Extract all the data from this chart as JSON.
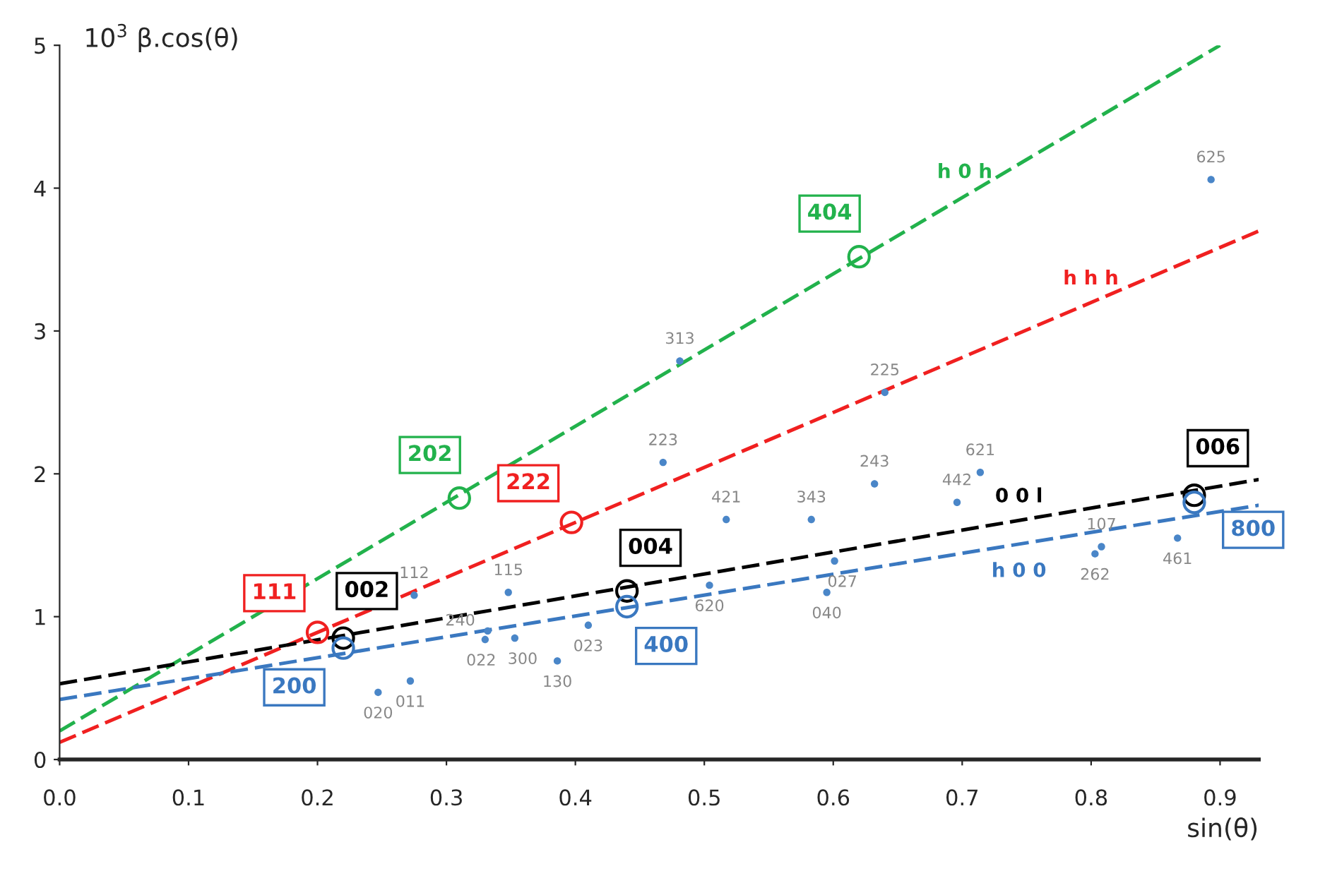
{
  "chart_data": {
    "type": "scatter",
    "xlabel": "sin(θ)",
    "ylabel": "10$^{3}$ β.cos(θ)",
    "xlim": [
      0,
      0.93
    ],
    "ylim": [
      0,
      5
    ],
    "xticks": [
      {
        "value": 0,
        "label": "0.0"
      },
      {
        "value": 0.1,
        "label": "0.1"
      },
      {
        "value": 0.2,
        "label": "0.2"
      },
      {
        "value": 0.3,
        "label": "0.3"
      },
      {
        "value": 0.4,
        "label": "0.4"
      },
      {
        "value": 0.5,
        "label": "0.5"
      },
      {
        "value": 0.6,
        "label": "0.6"
      },
      {
        "value": 0.7,
        "label": "0.7"
      },
      {
        "value": 0.8,
        "label": "0.8"
      },
      {
        "value": 0.9,
        "label": "0.9"
      }
    ],
    "yticks": [
      0,
      1,
      2,
      3,
      4,
      5
    ],
    "grid": false,
    "series": [
      {
        "type": "line",
        "name": "h 0 h",
        "color": "#22b24c",
        "line_style": "dashed",
        "x": [
          0,
          0.9
        ],
        "values": [
          0.2,
          5.0
        ]
      },
      {
        "type": "line",
        "name": "h h h",
        "color": "#f02020",
        "line_style": "dashed",
        "x": [
          0,
          0.93
        ],
        "values": [
          0.12,
          3.7
        ]
      },
      {
        "type": "line",
        "name": "0 0 l",
        "color": "#000000",
        "line_style": "dashed",
        "x": [
          0,
          0.93
        ],
        "values": [
          0.53,
          1.96
        ]
      },
      {
        "type": "line",
        "name": "h 0 0",
        "color": "#3a78c0",
        "line_style": "dashed",
        "x": [
          0,
          0.93
        ],
        "values": [
          0.42,
          1.78
        ]
      },
      {
        "color": "#22b24c",
        "marker": "circle",
        "x": [
          0.31,
          0.62
        ],
        "values": [
          1.83,
          3.52
        ]
      },
      {
        "color": "#f02020",
        "marker": "circle",
        "x": [
          0.2,
          0.397
        ],
        "values": [
          0.89,
          1.66
        ]
      },
      {
        "color": "#000000",
        "marker": "circle",
        "x": [
          0.22,
          0.44,
          0.88
        ],
        "values": [
          0.85,
          1.18,
          1.85
        ]
      },
      {
        "color": "#3a78c0",
        "marker": "circle",
        "x": [
          0.22,
          0.44,
          0.88
        ],
        "values": [
          0.78,
          1.07,
          1.8
        ]
      },
      {
        "color": "#4a86c8",
        "marker": "dot",
        "x": [
          0.247,
          0.272,
          0.275,
          0.332,
          0.33,
          0.353,
          0.348,
          0.386,
          0.41,
          0.468,
          0.481,
          0.504,
          0.517,
          0.583,
          0.595,
          0.601,
          0.632,
          0.64,
          0.696,
          0.714,
          0.803,
          0.808,
          0.867,
          0.893
        ],
        "values": [
          0.47,
          0.55,
          1.15,
          0.9,
          0.84,
          0.85,
          1.17,
          0.69,
          0.94,
          2.08,
          2.79,
          1.22,
          1.68,
          1.68,
          1.17,
          1.39,
          1.93,
          2.57,
          1.8,
          2.01,
          1.44,
          1.49,
          1.55,
          4.06
        ]
      }
    ],
    "annotations": [
      {
        "text": "202",
        "x": 0.31,
        "y": 1.83
      },
      {
        "text": "404",
        "x": 0.62,
        "y": 3.52
      },
      {
        "text": "111",
        "x": 0.2,
        "y": 0.89
      },
      {
        "text": "222",
        "x": 0.397,
        "y": 1.66
      },
      {
        "text": "002",
        "x": 0.22,
        "y": 0.85
      },
      {
        "text": "004",
        "x": 0.44,
        "y": 1.18
      },
      {
        "text": "006",
        "x": 0.88,
        "y": 1.85
      },
      {
        "text": "200",
        "x": 0.22,
        "y": 0.78
      },
      {
        "text": "400",
        "x": 0.44,
        "y": 1.07
      },
      {
        "text": "800",
        "x": 0.88,
        "y": 1.8
      },
      {
        "text": "020",
        "x": 0.247,
        "y": 0.47
      },
      {
        "text": "011",
        "x": 0.272,
        "y": 0.55
      },
      {
        "text": "112",
        "x": 0.275,
        "y": 1.15
      },
      {
        "text": "240",
        "x": 0.332,
        "y": 0.9
      },
      {
        "text": "022",
        "x": 0.33,
        "y": 0.84
      },
      {
        "text": "300",
        "x": 0.353,
        "y": 0.85
      },
      {
        "text": "115",
        "x": 0.348,
        "y": 1.17
      },
      {
        "text": "130",
        "x": 0.386,
        "y": 0.69
      },
      {
        "text": "023",
        "x": 0.41,
        "y": 0.94
      },
      {
        "text": "223",
        "x": 0.468,
        "y": 2.08
      },
      {
        "text": "313",
        "x": 0.481,
        "y": 2.79
      },
      {
        "text": "620",
        "x": 0.504,
        "y": 1.22
      },
      {
        "text": "421",
        "x": 0.517,
        "y": 1.68
      },
      {
        "text": "343",
        "x": 0.583,
        "y": 1.68
      },
      {
        "text": "040",
        "x": 0.595,
        "y": 1.17
      },
      {
        "text": "027",
        "x": 0.601,
        "y": 1.39
      },
      {
        "text": "243",
        "x": 0.632,
        "y": 1.93
      },
      {
        "text": "225",
        "x": 0.64,
        "y": 2.57
      },
      {
        "text": "442",
        "x": 0.696,
        "y": 1.8
      },
      {
        "text": "621",
        "x": 0.714,
        "y": 2.01
      },
      {
        "text": "262",
        "x": 0.803,
        "y": 1.44
      },
      {
        "text": "107",
        "x": 0.808,
        "y": 1.49
      },
      {
        "text": "461",
        "x": 0.867,
        "y": 1.55
      },
      {
        "text": "625",
        "x": 0.893,
        "y": 4.06
      }
    ]
  }
}
